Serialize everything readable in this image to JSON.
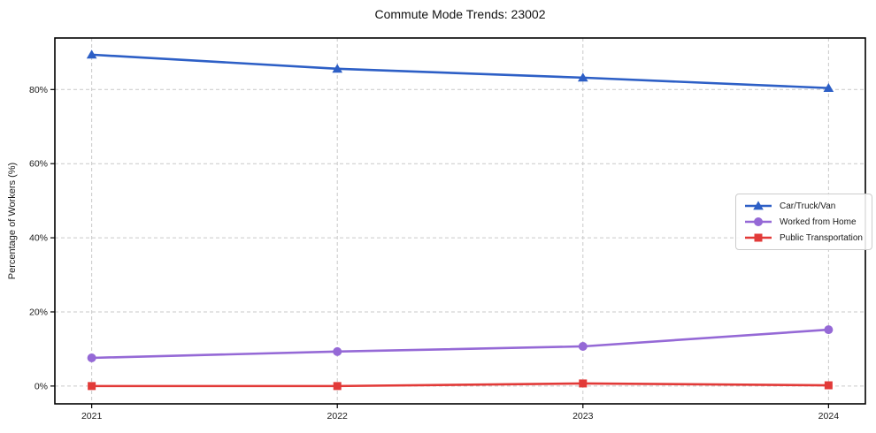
{
  "chart_data": {
    "type": "line",
    "title": "Commute Mode Trends: 23002",
    "xlabel": "",
    "ylabel": "Percentage of Workers (%)",
    "x": [
      2021,
      2022,
      2023,
      2024
    ],
    "x_tick_labels": [
      "2021",
      "2022",
      "2023",
      "2024"
    ],
    "yticks": [
      0,
      20,
      40,
      60,
      80
    ],
    "ytick_labels": [
      "0%",
      "20%",
      "40%",
      "60%",
      "80%"
    ],
    "xlim": [
      2020.85,
      2024.15
    ],
    "ylim": [
      -4.8,
      93.9
    ],
    "grid": "dashed",
    "grid_color": "#c9c9c9",
    "legend_position": "center-right",
    "series": [
      {
        "name": "Car/Truck/Van",
        "color": "#2d5fc6",
        "marker": "triangle",
        "values": [
          89.4,
          85.6,
          83.2,
          80.4
        ]
      },
      {
        "name": "Worked from Home",
        "color": "#9569d6",
        "marker": "circle",
        "values": [
          7.6,
          9.3,
          10.7,
          15.2
        ]
      },
      {
        "name": "Public Transportation",
        "color": "#e23a38",
        "marker": "square",
        "values": [
          0.0,
          0.0,
          0.7,
          0.2
        ]
      }
    ]
  }
}
